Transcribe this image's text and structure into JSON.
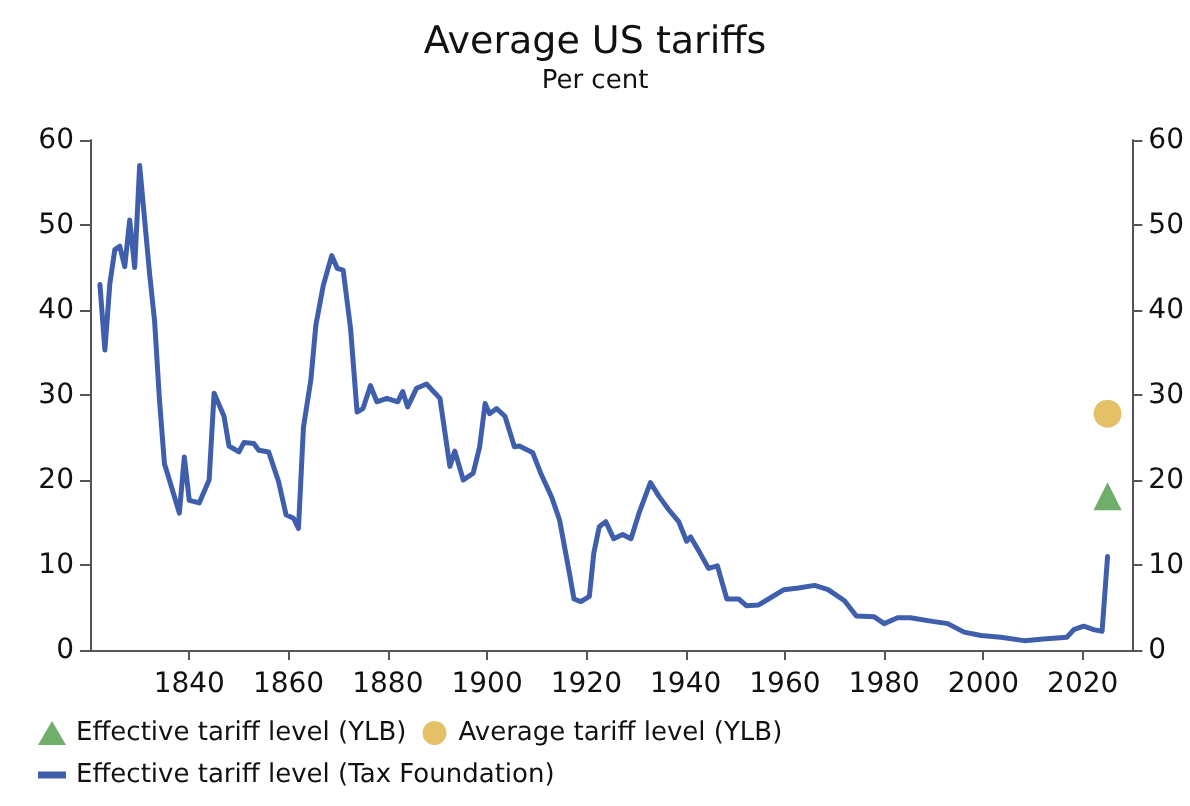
{
  "chart_data": {
    "type": "line",
    "title": "Average US tariffs",
    "subtitle": "Per cent",
    "xlim": [
      1820,
      2030
    ],
    "xticks": [
      1840,
      1860,
      1880,
      1900,
      1920,
      1940,
      1960,
      1980,
      2000,
      2020
    ],
    "ylim": [
      0,
      60
    ],
    "yticks": [
      0,
      10,
      20,
      30,
      40,
      50,
      60
    ],
    "y2lim": [
      0,
      60
    ],
    "y2ticks": [
      0,
      10,
      20,
      30,
      40,
      50,
      60
    ],
    "legend": "bottom",
    "grid": false,
    "series": [
      {
        "name": "Effective tariff level (YLB)",
        "type": "scatter",
        "marker": "triangle",
        "color": "#4c9a47",
        "x": [
          2025
        ],
        "values": [
          18.1
        ]
      },
      {
        "name": "Average tariff level (YLB)",
        "type": "scatter",
        "marker": "circle",
        "color": "#ddb040",
        "x": [
          2025
        ],
        "values": [
          27.8
        ]
      },
      {
        "name": "Effective tariff level (Tax Foundation)",
        "color": "#3f5fac",
        "x": [
          1822,
          1823,
          1824,
          1825,
          1826,
          1827,
          1828,
          1829,
          1830,
          1832,
          1833,
          1834,
          1835,
          1836,
          1838,
          1839,
          1840,
          1842,
          1844,
          1845,
          1847,
          1848,
          1850,
          1851,
          1853,
          1854,
          1856,
          1858,
          1859.5,
          1861,
          1862,
          1863,
          1864.5,
          1865.5,
          1867,
          1868.7,
          1869.8,
          1871,
          1872.5,
          1873.8,
          1875,
          1876.5,
          1877.8,
          1879.8,
          1882,
          1883,
          1884,
          1885.8,
          1887.8,
          1890.5,
          1892.5,
          1893.5,
          1895.2,
          1897.2,
          1898.5,
          1899.6,
          1900.5,
          1901.9,
          1903.6,
          1905.5,
          1906.5,
          1907.9,
          1909.2,
          1910.8,
          1913,
          1914.6,
          1916.6,
          1917.5,
          1918.9,
          1920.6,
          1921.5,
          1922.6,
          1923.9,
          1925.5,
          1927.3,
          1929,
          1930.6,
          1932.9,
          1934.6,
          1936.6,
          1938.6,
          1940.2,
          1941,
          1942.9,
          1944.6,
          1946.4,
          1948.3,
          1950.7,
          1952.3,
          1954.7,
          1956.7,
          1959.8,
          1962.7,
          1966,
          1968.7,
          1972,
          1974.4,
          1978,
          1980,
          1982.7,
          1985.3,
          1989.4,
          1992.8,
          1996.1,
          1999.5,
          2003.5,
          2008.2,
          2012.1,
          2016.8,
          2018.2,
          2020.2,
          2022.2,
          2023.9,
          2025
        ],
        "values": [
          43,
          35.3,
          43.1,
          47.1,
          47.5,
          45.1,
          50.6,
          45,
          57,
          44.3,
          38.8,
          29.4,
          21.9,
          20,
          16.1,
          22.7,
          17.6,
          17.3,
          20,
          30.2,
          27.5,
          24,
          23.3,
          24.4,
          24.3,
          23.5,
          23.3,
          19.8,
          15.9,
          15.5,
          14.3,
          26.2,
          31.8,
          38.2,
          42.9,
          46.4,
          44.9,
          44.7,
          37.8,
          28,
          28.4,
          31.1,
          29.2,
          29.6,
          29.2,
          30.4,
          28.6,
          30.8,
          31.3,
          29.6,
          21.6,
          23.4,
          20,
          20.8,
          23.9,
          29,
          27.8,
          28.4,
          27.5,
          23.9,
          24,
          23.6,
          23.2,
          20.8,
          18,
          15.3,
          9,
          6,
          5.7,
          6.3,
          11.4,
          14.5,
          15.1,
          13.1,
          13.6,
          13.1,
          16.1,
          19.7,
          18.1,
          16.5,
          15.1,
          12.8,
          13.3,
          11.4,
          9.6,
          9.9,
          6,
          6,
          5.2,
          5.3,
          6,
          7.1,
          7.3,
          7.6,
          7.1,
          5.8,
          4,
          3.9,
          3.1,
          3.8,
          3.8,
          3.4,
          3.1,
          2.1,
          1.7,
          1.5,
          1.1,
          1.3,
          1.5,
          2.4,
          2.8,
          2.4,
          2.2,
          11
        ]
      }
    ]
  }
}
